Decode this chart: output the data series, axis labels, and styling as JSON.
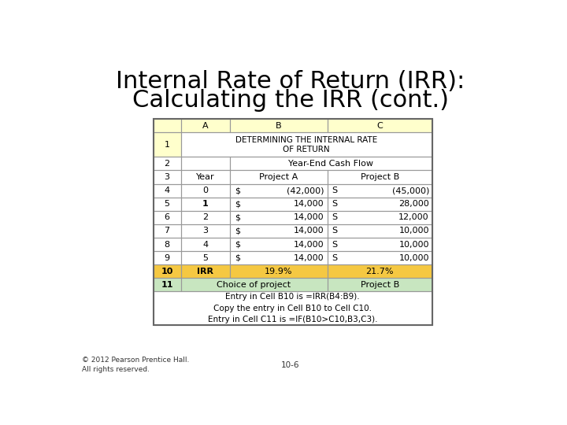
{
  "title_line1": "Internal Rate of Return (IRR):",
  "title_line2": "Calculating the IRR (cont.)",
  "title_fontsize": 22,
  "title_fontweight": "normal",
  "bg_color": "#ffffff",
  "col_header_bg": "#ffffcc",
  "row10_bg": "#f5c842",
  "row11_bg": "#c8e6c0",
  "table_border_color": "#999999",
  "footnote_lines": [
    "Entry in Cell B10 is =IRR(B4:B9).",
    "Copy the entry in Cell B10 to Cell C10.",
    "Entry in Cell C11 is =IF(B10>C10,B3,C3)."
  ],
  "copyright": "© 2012 Pearson Prentice Hall.\nAll rights reserved.",
  "page_num": "10-6"
}
